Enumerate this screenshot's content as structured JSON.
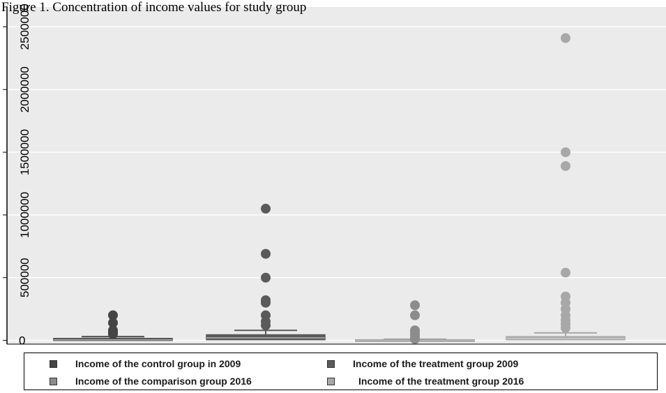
{
  "figure_title": "Figure 1. Concentration of income values for study group",
  "colors": {
    "background": "#ebebeb",
    "gridline": "#ffffff",
    "series": [
      "#444444",
      "#5a5a5a",
      "#8c8c8c",
      "#a8a8a8"
    ]
  },
  "chart_data": {
    "type": "box",
    "title": "Figure 1. Concentration of income values for study group",
    "xlabel": "",
    "ylabel": "",
    "ylim": [
      -30000,
      2580000
    ],
    "yticks": [
      0,
      500000,
      1000000,
      1500000,
      2000000,
      2500000
    ],
    "ytick_labels": [
      "0",
      "500000",
      "1000000",
      "1500000",
      "2000000",
      "2500000"
    ],
    "grid": true,
    "legend_position": "bottom",
    "series": [
      {
        "name": "Income of the control group in 2009",
        "q1": 0,
        "median": 5000,
        "q3": 15000,
        "whisker_low": 0,
        "whisker_high": 30000,
        "outliers": [
          200000,
          140000,
          80000,
          70000,
          60000,
          50000
        ]
      },
      {
        "name": "Income of the treatment group 2009",
        "q1": 5000,
        "median": 20000,
        "q3": 45000,
        "whisker_low": 0,
        "whisker_high": 80000,
        "outliers": [
          1050000,
          690000,
          500000,
          320000,
          300000,
          200000,
          150000,
          120000
        ]
      },
      {
        "name": "Income of the comparison group 2016",
        "q1": 0,
        "median": 2000,
        "q3": 5000,
        "whisker_low": 0,
        "whisker_high": 8000,
        "outliers": [
          280000,
          200000,
          80000,
          60000,
          40000,
          20000,
          10000
        ]
      },
      {
        "name": "Income of the treatment group 2016",
        "q1": 5000,
        "median": 15000,
        "q3": 30000,
        "whisker_low": 0,
        "whisker_high": 60000,
        "outliers": [
          2410000,
          1500000,
          1390000,
          540000,
          350000,
          300000,
          250000,
          200000,
          160000,
          130000,
          100000
        ]
      }
    ]
  }
}
